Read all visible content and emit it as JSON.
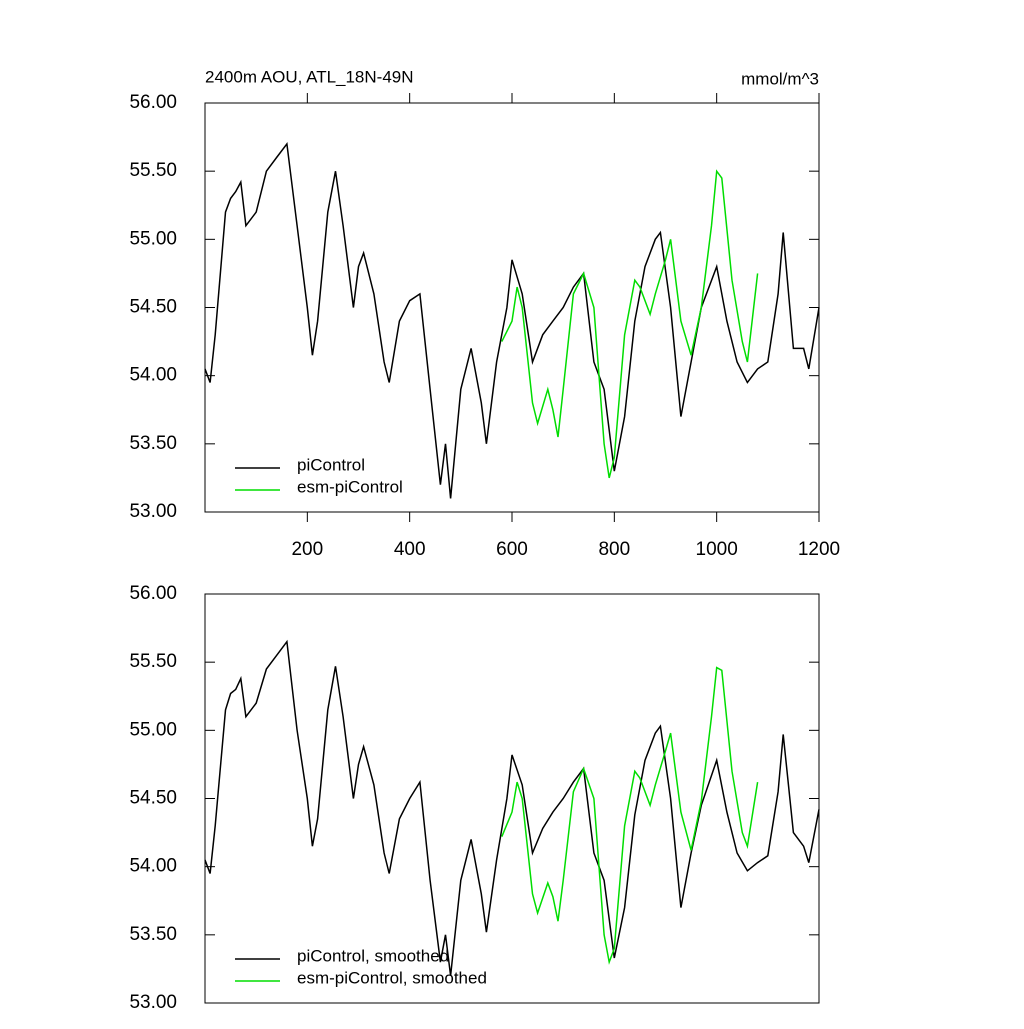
{
  "chart_data": [
    {
      "type": "line",
      "title": "2400m AOU, ATL_18N-49N",
      "units": "mmol/m^3",
      "xlim": [
        0,
        1200
      ],
      "xticks": [
        200,
        400,
        600,
        800,
        1000,
        1200
      ],
      "ylim": [
        53,
        56
      ],
      "yticks": [
        {
          "value": 53,
          "label": "53.00"
        },
        {
          "value": 53.5,
          "label": "53.50"
        },
        {
          "value": 54,
          "label": "54.00"
        },
        {
          "value": 54.5,
          "label": "54.50"
        },
        {
          "value": 55,
          "label": "55.00"
        },
        {
          "value": 55.5,
          "label": "55.50"
        },
        {
          "value": 56,
          "label": "56.00"
        }
      ],
      "legend": "lower left",
      "series": [
        {
          "name": "piControl",
          "color": "#000000",
          "x": [
            0,
            10,
            20,
            40,
            50,
            60,
            70,
            80,
            100,
            120,
            140,
            160,
            180,
            200,
            210,
            220,
            240,
            255,
            270,
            290,
            300,
            310,
            330,
            350,
            360,
            380,
            400,
            420,
            440,
            460,
            470,
            480,
            500,
            520,
            540,
            550,
            570,
            590,
            600,
            620,
            640,
            660,
            680,
            700,
            720,
            740,
            760,
            780,
            800,
            820,
            840,
            860,
            880,
            890,
            910,
            930,
            950,
            970,
            1000,
            1020,
            1040,
            1060,
            1080,
            1100,
            1120,
            1130,
            1150,
            1170,
            1180,
            1200
          ],
          "values": [
            54.05,
            53.95,
            54.3,
            55.2,
            55.3,
            55.35,
            55.42,
            55.1,
            55.2,
            55.5,
            55.6,
            55.7,
            55.1,
            54.5,
            54.15,
            54.4,
            55.2,
            55.5,
            55.1,
            54.5,
            54.8,
            54.9,
            54.6,
            54.1,
            53.95,
            54.4,
            54.55,
            54.6,
            53.9,
            53.2,
            53.5,
            53.1,
            53.9,
            54.2,
            53.8,
            53.5,
            54.1,
            54.5,
            54.85,
            54.6,
            54.1,
            54.3,
            54.4,
            54.5,
            54.65,
            54.75,
            54.1,
            53.9,
            53.3,
            53.7,
            54.4,
            54.8,
            55.0,
            55.05,
            54.5,
            53.7,
            54.1,
            54.5,
            54.8,
            54.4,
            54.1,
            53.95,
            54.05,
            54.1,
            54.6,
            55.05,
            54.2,
            54.2,
            54.05,
            54.5
          ]
        },
        {
          "name": "esm-piControl",
          "color": "#00dd00",
          "x": [
            580,
            600,
            610,
            620,
            640,
            650,
            670,
            680,
            690,
            700,
            720,
            740,
            760,
            780,
            790,
            800,
            820,
            840,
            850,
            870,
            880,
            900,
            910,
            930,
            950,
            970,
            990,
            1000,
            1010,
            1030,
            1050,
            1060,
            1080
          ],
          "values": [
            54.25,
            54.4,
            54.65,
            54.5,
            53.8,
            53.65,
            53.9,
            53.75,
            53.55,
            53.9,
            54.6,
            54.75,
            54.5,
            53.5,
            53.25,
            53.4,
            54.3,
            54.7,
            54.65,
            54.45,
            54.6,
            54.85,
            55.0,
            54.4,
            54.15,
            54.5,
            55.1,
            55.5,
            55.45,
            54.7,
            54.25,
            54.1,
            54.75
          ]
        }
      ]
    },
    {
      "type": "line",
      "xlim": [
        0,
        1200
      ],
      "ylim": [
        53,
        56
      ],
      "yticks": [
        {
          "value": 53,
          "label": "53.00"
        },
        {
          "value": 53.5,
          "label": "53.50"
        },
        {
          "value": 54,
          "label": "54.00"
        },
        {
          "value": 54.5,
          "label": "54.50"
        },
        {
          "value": 55,
          "label": "55.00"
        },
        {
          "value": 55.5,
          "label": "55.50"
        },
        {
          "value": 56,
          "label": "56.00"
        }
      ],
      "legend": "lower left",
      "series": [
        {
          "name": "piControl, smoothed",
          "color": "#000000",
          "x": [
            0,
            10,
            20,
            40,
            50,
            60,
            70,
            80,
            100,
            120,
            140,
            160,
            180,
            200,
            210,
            220,
            240,
            255,
            270,
            290,
            300,
            310,
            330,
            350,
            360,
            380,
            400,
            420,
            440,
            460,
            470,
            480,
            500,
            520,
            540,
            550,
            570,
            590,
            600,
            620,
            640,
            660,
            680,
            700,
            720,
            740,
            760,
            780,
            800,
            820,
            840,
            860,
            880,
            890,
            910,
            930,
            950,
            970,
            1000,
            1020,
            1040,
            1060,
            1080,
            1100,
            1120,
            1130,
            1150,
            1170,
            1180,
            1200
          ],
          "values": [
            54.05,
            53.95,
            54.3,
            55.15,
            55.27,
            55.3,
            55.38,
            55.1,
            55.2,
            55.45,
            55.55,
            55.65,
            55.0,
            54.5,
            54.15,
            54.35,
            55.15,
            55.47,
            55.1,
            54.5,
            54.75,
            54.88,
            54.6,
            54.1,
            53.95,
            54.35,
            54.5,
            54.62,
            53.9,
            53.3,
            53.5,
            53.2,
            53.9,
            54.2,
            53.8,
            53.52,
            54.05,
            54.5,
            54.82,
            54.6,
            54.1,
            54.28,
            54.4,
            54.5,
            54.62,
            54.72,
            54.1,
            53.9,
            53.33,
            53.7,
            54.38,
            54.78,
            54.98,
            55.03,
            54.5,
            53.7,
            54.1,
            54.45,
            54.78,
            54.4,
            54.1,
            53.97,
            54.03,
            54.08,
            54.55,
            54.97,
            54.25,
            54.15,
            54.03,
            54.42
          ]
        },
        {
          "name": "esm-piControl, smoothed",
          "color": "#00dd00",
          "x": [
            580,
            600,
            610,
            620,
            640,
            650,
            670,
            680,
            690,
            700,
            720,
            740,
            760,
            780,
            790,
            800,
            820,
            840,
            850,
            870,
            880,
            900,
            910,
            930,
            950,
            970,
            990,
            1000,
            1010,
            1030,
            1050,
            1060,
            1080
          ],
          "values": [
            54.22,
            54.4,
            54.62,
            54.5,
            53.8,
            53.66,
            53.88,
            53.78,
            53.6,
            53.9,
            54.55,
            54.72,
            54.5,
            53.5,
            53.3,
            53.4,
            54.3,
            54.7,
            54.65,
            54.45,
            54.6,
            54.85,
            54.98,
            54.4,
            54.12,
            54.48,
            55.1,
            55.46,
            55.44,
            54.7,
            54.25,
            54.15,
            54.62
          ]
        }
      ]
    }
  ]
}
